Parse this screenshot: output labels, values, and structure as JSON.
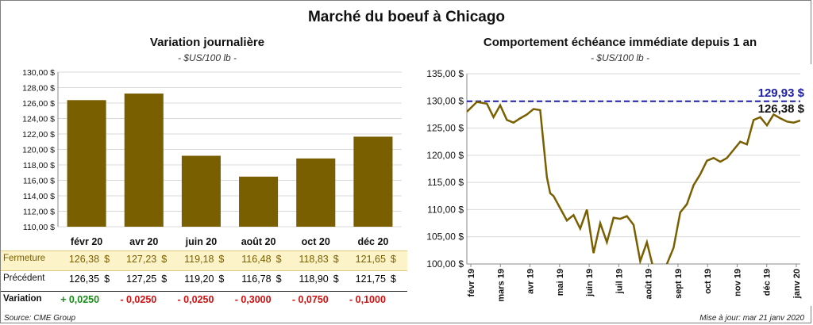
{
  "title": "Marché du boeuf à Chicago",
  "left": {
    "title": "Variation  journalière",
    "unit": "- $US/100 lb -",
    "table": {
      "rows": [
        {
          "label": "Fermeture",
          "values": [
            "126,38",
            "127,23",
            "119,18",
            "116,48",
            "118,83",
            "121,65"
          ],
          "currency": "$"
        },
        {
          "label": "Précédent",
          "values": [
            "126,35",
            "127,25",
            "119,20",
            "116,78",
            "118,90",
            "121,75"
          ],
          "currency": "$"
        },
        {
          "label": "Variation",
          "values": [
            "+ 0,0250",
            "- 0,0250",
            "- 0,0250",
            "- 0,3000",
            "- 0,0750",
            "- 0,1000"
          ]
        }
      ]
    }
  },
  "right": {
    "title": "Comportement  échéance immédiate depuis 1 an",
    "unit": "- $US/100 lb -",
    "annot_high": "129,93 $",
    "annot_last": "126,38 $"
  },
  "source": "Source: CME Group",
  "updated": "Mise à jour: mar 21 janv 2020",
  "chart_data": [
    {
      "type": "bar",
      "title": "Variation  journalière",
      "categories": [
        "févr 20",
        "avr 20",
        "juin 20",
        "août 20",
        "oct 20",
        "déc 20"
      ],
      "values": [
        126.38,
        127.23,
        119.18,
        116.48,
        118.83,
        121.65
      ],
      "ylim": [
        110,
        130
      ],
      "yticks": [
        "110,00 $",
        "112,00 $",
        "114,00 $",
        "116,00 $",
        "118,00 $",
        "120,00 $",
        "122,00 $",
        "124,00 $",
        "126,00 $",
        "128,00 $",
        "130,00 $"
      ],
      "bar_color": "#7a5f00"
    },
    {
      "type": "line",
      "title": "Comportement  échéance immédiate depuis 1 an",
      "xlabels": [
        "févr 19",
        "mars 19",
        "avr 19",
        "mai 19",
        "juin 19",
        "juil 19",
        "août 19",
        "sept 19",
        "oct 19",
        "nov 19",
        "déc 19",
        "janv 20"
      ],
      "ylim": [
        100,
        135
      ],
      "yticks": [
        "100,00 $",
        "105,00 $",
        "110,00 $",
        "115,00 $",
        "120,00 $",
        "125,00 $",
        "130,00 $",
        "135,00 $"
      ],
      "reference_line": 129.93,
      "line_color": "#7a5f00",
      "ref_color": "#1f1fa8",
      "series": [
        {
          "x": [
            0,
            0.03,
            0.06,
            0.08,
            0.1,
            0.12,
            0.14,
            0.16,
            0.18,
            0.2,
            0.22,
            0.24,
            0.25,
            0.26,
            0.3,
            0.32,
            0.34,
            0.36,
            0.38,
            0.4,
            0.42,
            0.44,
            0.46,
            0.48,
            0.5,
            0.52,
            0.54,
            0.56,
            0.58,
            0.6,
            0.62,
            0.64,
            0.66,
            0.68,
            0.7,
            0.72,
            0.74,
            0.76,
            0.78,
            0.8,
            0.82,
            0.84,
            0.86,
            0.88,
            0.9,
            0.92,
            0.94,
            0.96,
            0.98,
            1.0
          ],
          "values": [
            128.0,
            129.8,
            129.5,
            127.0,
            129.2,
            126.5,
            126.0,
            126.8,
            127.5,
            128.5,
            128.3,
            116.0,
            113.0,
            112.5,
            108.0,
            109.0,
            106.5,
            110.0,
            102.0,
            107.5,
            104.0,
            108.5,
            108.3,
            108.8,
            107.2,
            100.5,
            104.0,
            99.0,
            96.0,
            100.0,
            103.0,
            109.5,
            111.0,
            114.5,
            116.5,
            119.0,
            119.5,
            118.8,
            119.5,
            121.0,
            122.5,
            122.0,
            126.5,
            127.0,
            125.5,
            127.5,
            126.8,
            126.2,
            126.0,
            126.38
          ]
        }
      ]
    }
  ]
}
